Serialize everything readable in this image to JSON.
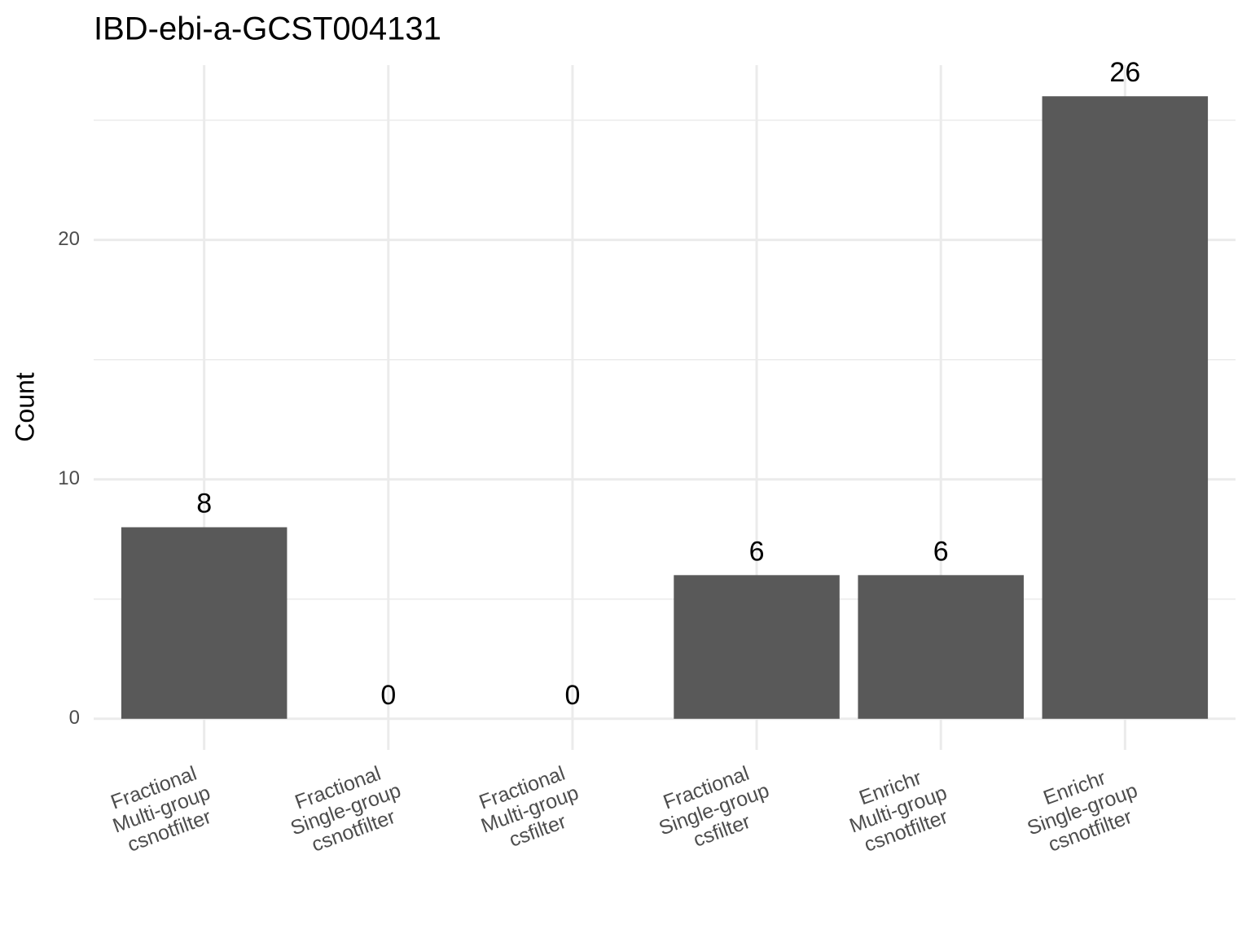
{
  "chart_data": {
    "type": "bar",
    "title": "IBD-ebi-a-GCST004131",
    "y_label": "Count",
    "categories": [
      "Fractional\nMulti-group\ncsnotfilter",
      "Fractional\nSingle-group\ncsnotfilter",
      "Fractional\nMulti-group\ncsfilter",
      "Fractional\nSingle-group\ncsfilter",
      "Enrichr\nMulti-group\ncsnotfilter",
      "Enrichr\nSingle-group\ncsnotfilter"
    ],
    "values": [
      8,
      0,
      0,
      6,
      6,
      26
    ],
    "color": "#595959",
    "ylim": [
      -1.3,
      27.3
    ],
    "yticks": [
      0,
      10,
      20
    ],
    "grid": true
  }
}
